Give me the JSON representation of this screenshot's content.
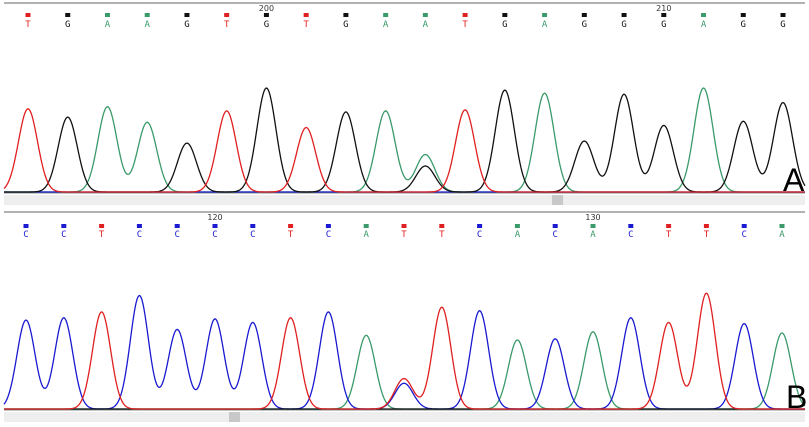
{
  "colors": {
    "A": "#3a9a6a",
    "C": "#1a1ad0",
    "G": "#111111",
    "T": "#e02020",
    "N": "#e02020",
    "baseline": "#999999",
    "scrollbar": "#eeeeee",
    "thumb": "#c8c8c8"
  },
  "chart_data": [
    {
      "type": "chromatogram",
      "panel_label": "A",
      "position_labels": [
        {
          "label": "200",
          "base_index": 6
        },
        {
          "label": "210",
          "base_index": 16
        }
      ],
      "bases": [
        "T",
        "G",
        "A",
        "A",
        "G",
        "T",
        "G",
        "T",
        "G",
        "A",
        "A",
        "T",
        "G",
        "A",
        "G",
        "G",
        "G",
        "A",
        "G",
        "G"
      ],
      "peaks": [
        {
          "base": "T",
          "height": 0.8
        },
        {
          "base": "G",
          "height": 0.72
        },
        {
          "base": "A",
          "height": 0.82
        },
        {
          "base": "A",
          "height": 0.67
        },
        {
          "base": "G",
          "height": 0.47
        },
        {
          "base": "T",
          "height": 0.78
        },
        {
          "base": "G",
          "height": 1.0
        },
        {
          "base": "T",
          "height": 0.62
        },
        {
          "base": "G",
          "height": 0.77
        },
        {
          "base": "A",
          "height": 0.78
        },
        {
          "base": "A",
          "height": 0.36,
          "secondary": {
            "base": "G",
            "height": 0.25
          }
        },
        {
          "base": "T",
          "height": 0.79
        },
        {
          "base": "G",
          "height": 0.98
        },
        {
          "base": "A",
          "height": 0.95
        },
        {
          "base": "G",
          "height": 0.49
        },
        {
          "base": "G",
          "height": 0.94
        },
        {
          "base": "G",
          "height": 0.64
        },
        {
          "base": "A",
          "height": 1.0
        },
        {
          "base": "G",
          "height": 0.68
        },
        {
          "base": "G",
          "height": 0.86
        }
      ]
    },
    {
      "type": "chromatogram",
      "panel_label": "B",
      "position_labels": [
        {
          "label": "120",
          "base_index": 5
        },
        {
          "label": "130",
          "base_index": 15
        }
      ],
      "bases": [
        "C",
        "C",
        "T",
        "C",
        "C",
        "C",
        "C",
        "T",
        "C",
        "A",
        "T",
        "T",
        "C",
        "A",
        "C",
        "A",
        "C",
        "T",
        "T",
        "C",
        "A"
      ],
      "peaks": [
        {
          "base": "C",
          "height": 0.76
        },
        {
          "base": "C",
          "height": 0.78
        },
        {
          "base": "T",
          "height": 0.83
        },
        {
          "base": "C",
          "height": 0.97
        },
        {
          "base": "C",
          "height": 0.68
        },
        {
          "base": "C",
          "height": 0.77
        },
        {
          "base": "C",
          "height": 0.74
        },
        {
          "base": "T",
          "height": 0.78
        },
        {
          "base": "C",
          "height": 0.83
        },
        {
          "base": "A",
          "height": 0.63
        },
        {
          "base": "T",
          "height": 0.26,
          "secondary": {
            "base": "C",
            "height": 0.22
          }
        },
        {
          "base": "T",
          "height": 0.87
        },
        {
          "base": "C",
          "height": 0.84
        },
        {
          "base": "A",
          "height": 0.59
        },
        {
          "base": "C",
          "height": 0.6
        },
        {
          "base": "A",
          "height": 0.66
        },
        {
          "base": "C",
          "height": 0.78
        },
        {
          "base": "T",
          "height": 0.74
        },
        {
          "base": "T",
          "height": 0.99
        },
        {
          "base": "C",
          "height": 0.73
        },
        {
          "base": "A",
          "height": 0.65
        }
      ]
    }
  ]
}
